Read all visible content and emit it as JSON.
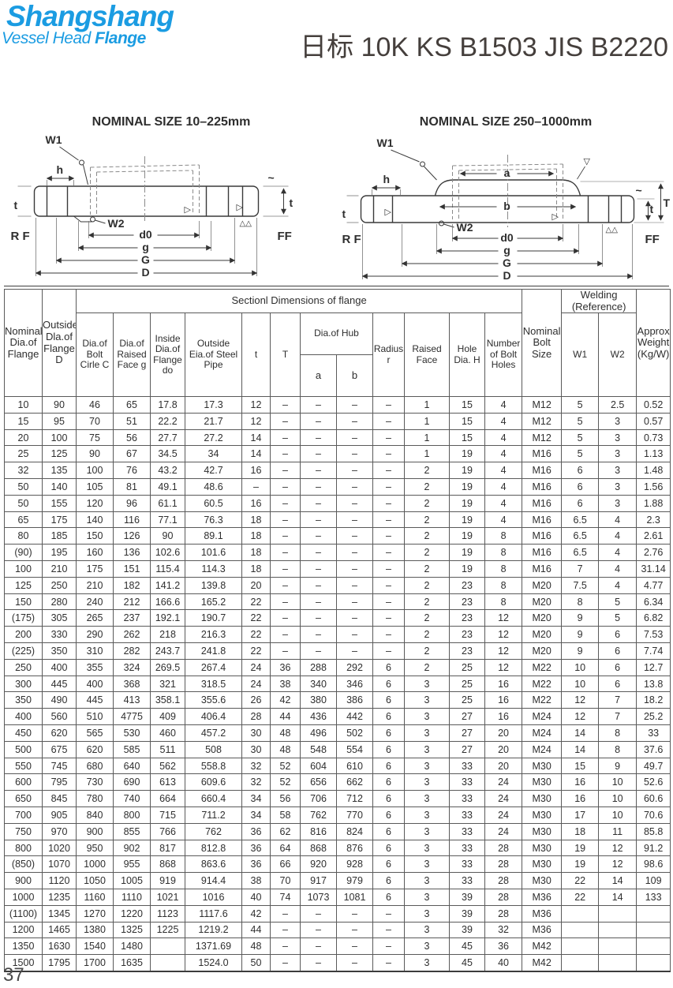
{
  "logo": {
    "name": "Shangshang",
    "subtitle_1": "Vessel Head",
    "subtitle_2": "Flange"
  },
  "title": "日标 10K KS B1503 JIS B2220",
  "page_number": "37",
  "diagrams": [
    {
      "title": "NOMINAL SIZE 10–225mm",
      "labels": {
        "w1": "W1",
        "h": "h",
        "t_left": "t",
        "w2": "W2",
        "d0": "d0",
        "g": "g",
        "G": "G",
        "D": "D",
        "rf": "R F",
        "ff": "FF",
        "t_right": "t",
        "tri": "▷",
        "tri2": "▷",
        "fin": "△△",
        "sq": "~"
      }
    },
    {
      "title": "NOMINAL SIZE 250–1000mm",
      "labels": {
        "w1": "W1",
        "h": "h",
        "t_left": "t",
        "w2": "W2",
        "a": "a",
        "b": "b",
        "d0": "d0",
        "g": "g",
        "G": "G",
        "D": "D",
        "rf": "R F",
        "ff": "FF",
        "t_right": "t",
        "T_right": "T",
        "tri": "▷",
        "tri2": "▷",
        "tri3": "▽",
        "fin": "△△",
        "sq": "~"
      }
    }
  ],
  "table": {
    "section_header": "Sectionl Dimensions of flange",
    "welding_header": "Welding (Reference)",
    "columns": {
      "nominal": "Nominal Dia.of Flange",
      "outside_d": "Outside Dla.of Flange D",
      "bolt_circle_c": "Dia.of Bolt Cirle C",
      "raised_face_g": "Dia.of Raised Face g",
      "inside_do": "Inside Dia.of Flange do",
      "steel_pipe": "Outside Eia.of Steel Pipe",
      "t": "t",
      "T2": "T",
      "hub": "Dia.of Hub",
      "a": "a",
      "b": "b",
      "radius_r": "Radius r",
      "raised_face": "Raised Face",
      "hole_h": "Hole Dia. H",
      "bolt_holes": "Number of Bolt Holes",
      "bolt_size": "Nominal Bolt Size",
      "w1": "W1",
      "w2": "W2",
      "weight": "Approx Weight (Kg/W)"
    },
    "rows": [
      [
        "10",
        "90",
        "46",
        "65",
        "17.8",
        "17.3",
        "12",
        "–",
        "–",
        "–",
        "–",
        "1",
        "15",
        "4",
        "M12",
        "5",
        "2.5",
        "0.52"
      ],
      [
        "15",
        "95",
        "70",
        "51",
        "22.2",
        "21.7",
        "12",
        "–",
        "–",
        "–",
        "–",
        "1",
        "15",
        "4",
        "M12",
        "5",
        "3",
        "0.57"
      ],
      [
        "20",
        "100",
        "75",
        "56",
        "27.7",
        "27.2",
        "14",
        "–",
        "–",
        "–",
        "–",
        "1",
        "15",
        "4",
        "M12",
        "5",
        "3",
        "0.73"
      ],
      [
        "25",
        "125",
        "90",
        "67",
        "34.5",
        "34",
        "14",
        "–",
        "–",
        "–",
        "–",
        "1",
        "19",
        "4",
        "M16",
        "5",
        "3",
        "1.13"
      ],
      [
        "32",
        "135",
        "100",
        "76",
        "43.2",
        "42.7",
        "16",
        "–",
        "–",
        "–",
        "–",
        "2",
        "19",
        "4",
        "M16",
        "6",
        "3",
        "1.48"
      ],
      [
        "50",
        "140",
        "105",
        "81",
        "49.1",
        "48.6",
        "–",
        "–",
        "–",
        "–",
        "–",
        "2",
        "19",
        "4",
        "M16",
        "6",
        "3",
        "1.56"
      ],
      [
        "50",
        "155",
        "120",
        "96",
        "61.1",
        "60.5",
        "16",
        "–",
        "–",
        "–",
        "–",
        "2",
        "19",
        "4",
        "M16",
        "6",
        "3",
        "1.88"
      ],
      [
        "65",
        "175",
        "140",
        "116",
        "77.1",
        "76.3",
        "18",
        "–",
        "–",
        "–",
        "–",
        "2",
        "19",
        "4",
        "M16",
        "6.5",
        "4",
        "2.3"
      ],
      [
        "80",
        "185",
        "150",
        "126",
        "90",
        "89.1",
        "18",
        "–",
        "–",
        "–",
        "–",
        "2",
        "19",
        "8",
        "M16",
        "6.5",
        "4",
        "2.61"
      ],
      [
        "(90)",
        "195",
        "160",
        "136",
        "102.6",
        "101.6",
        "18",
        "–",
        "–",
        "–",
        "–",
        "2",
        "19",
        "8",
        "M16",
        "6.5",
        "4",
        "2.76"
      ],
      [
        "100",
        "210",
        "175",
        "151",
        "115.4",
        "114.3",
        "18",
        "–",
        "–",
        "–",
        "–",
        "2",
        "19",
        "8",
        "M16",
        "7",
        "4",
        "31.14"
      ],
      [
        "125",
        "250",
        "210",
        "182",
        "141.2",
        "139.8",
        "20",
        "–",
        "–",
        "–",
        "–",
        "2",
        "23",
        "8",
        "M20",
        "7.5",
        "4",
        "4.77"
      ],
      [
        "150",
        "280",
        "240",
        "212",
        "166.6",
        "165.2",
        "22",
        "–",
        "–",
        "–",
        "–",
        "2",
        "23",
        "8",
        "M20",
        "8",
        "5",
        "6.34"
      ],
      [
        "(175)",
        "305",
        "265",
        "237",
        "192.1",
        "190.7",
        "22",
        "–",
        "–",
        "–",
        "–",
        "2",
        "23",
        "12",
        "M20",
        "9",
        "5",
        "6.82"
      ],
      [
        "200",
        "330",
        "290",
        "262",
        "218",
        "216.3",
        "22",
        "–",
        "–",
        "–",
        "–",
        "2",
        "23",
        "12",
        "M20",
        "9",
        "6",
        "7.53"
      ],
      [
        "(225)",
        "350",
        "310",
        "282",
        "243.7",
        "241.8",
        "22",
        "–",
        "–",
        "–",
        "–",
        "2",
        "23",
        "12",
        "M20",
        "9",
        "6",
        "7.74"
      ],
      [
        "250",
        "400",
        "355",
        "324",
        "269.5",
        "267.4",
        "24",
        "36",
        "288",
        "292",
        "6",
        "2",
        "25",
        "12",
        "M22",
        "10",
        "6",
        "12.7"
      ],
      [
        "300",
        "445",
        "400",
        "368",
        "321",
        "318.5",
        "24",
        "38",
        "340",
        "346",
        "6",
        "3",
        "25",
        "16",
        "M22",
        "10",
        "6",
        "13.8"
      ],
      [
        "350",
        "490",
        "445",
        "413",
        "358.1",
        "355.6",
        "26",
        "42",
        "380",
        "386",
        "6",
        "3",
        "25",
        "16",
        "M22",
        "12",
        "7",
        "18.2"
      ],
      [
        "400",
        "560",
        "510",
        "4775",
        "409",
        "406.4",
        "28",
        "44",
        "436",
        "442",
        "6",
        "3",
        "27",
        "16",
        "M24",
        "12",
        "7",
        "25.2"
      ],
      [
        "450",
        "620",
        "565",
        "530",
        "460",
        "457.2",
        "30",
        "48",
        "496",
        "502",
        "6",
        "3",
        "27",
        "20",
        "M24",
        "14",
        "8",
        "33"
      ],
      [
        "500",
        "675",
        "620",
        "585",
        "511",
        "508",
        "30",
        "48",
        "548",
        "554",
        "6",
        "3",
        "27",
        "20",
        "M24",
        "14",
        "8",
        "37.6"
      ],
      [
        "550",
        "745",
        "680",
        "640",
        "562",
        "558.8",
        "32",
        "52",
        "604",
        "610",
        "6",
        "3",
        "33",
        "20",
        "M30",
        "15",
        "9",
        "49.7"
      ],
      [
        "600",
        "795",
        "730",
        "690",
        "613",
        "609.6",
        "32",
        "52",
        "656",
        "662",
        "6",
        "3",
        "33",
        "24",
        "M30",
        "16",
        "10",
        "52.6"
      ],
      [
        "650",
        "845",
        "780",
        "740",
        "664",
        "660.4",
        "34",
        "56",
        "706",
        "712",
        "6",
        "3",
        "33",
        "24",
        "M30",
        "16",
        "10",
        "60.6"
      ],
      [
        "700",
        "905",
        "840",
        "800",
        "715",
        "711.2",
        "34",
        "58",
        "762",
        "770",
        "6",
        "3",
        "33",
        "24",
        "M30",
        "17",
        "10",
        "70.6"
      ],
      [
        "750",
        "970",
        "900",
        "855",
        "766",
        "762",
        "36",
        "62",
        "816",
        "824",
        "6",
        "3",
        "33",
        "24",
        "M30",
        "18",
        "11",
        "85.8"
      ],
      [
        "800",
        "1020",
        "950",
        "902",
        "817",
        "812.8",
        "36",
        "64",
        "868",
        "876",
        "6",
        "3",
        "33",
        "28",
        "M30",
        "19",
        "12",
        "91.2"
      ],
      [
        "(850)",
        "1070",
        "1000",
        "955",
        "868",
        "863.6",
        "36",
        "66",
        "920",
        "928",
        "6",
        "3",
        "33",
        "28",
        "M30",
        "19",
        "12",
        "98.6"
      ],
      [
        "900",
        "1120",
        "1050",
        "1005",
        "919",
        "914.4",
        "38",
        "70",
        "917",
        "979",
        "6",
        "3",
        "33",
        "28",
        "M30",
        "22",
        "14",
        "109"
      ],
      [
        "1000",
        "1235",
        "1160",
        "1110",
        "1021",
        "1016",
        "40",
        "74",
        "1073",
        "1081",
        "6",
        "3",
        "39",
        "28",
        "M36",
        "22",
        "14",
        "133"
      ],
      [
        "(1100)",
        "1345",
        "1270",
        "1220",
        "1123",
        "1117.6",
        "42",
        "–",
        "–",
        "–",
        "–",
        "3",
        "39",
        "28",
        "M36",
        "",
        "",
        ""
      ],
      [
        "1200",
        "1465",
        "1380",
        "1325",
        "1225",
        "1219.2",
        "44",
        "–",
        "–",
        "–",
        "–",
        "3",
        "39",
        "32",
        "M36",
        "",
        "",
        ""
      ],
      [
        "1350",
        "1630",
        "1540",
        "1480",
        "",
        "1371.69",
        "48",
        "–",
        "–",
        "–",
        "–",
        "3",
        "45",
        "36",
        "M42",
        "",
        "",
        ""
      ],
      [
        "1500",
        "1795",
        "1700",
        "1635",
        "",
        "1524.0",
        "50",
        "–",
        "–",
        "–",
        "–",
        "3",
        "45",
        "40",
        "M42",
        "",
        "",
        ""
      ]
    ]
  }
}
